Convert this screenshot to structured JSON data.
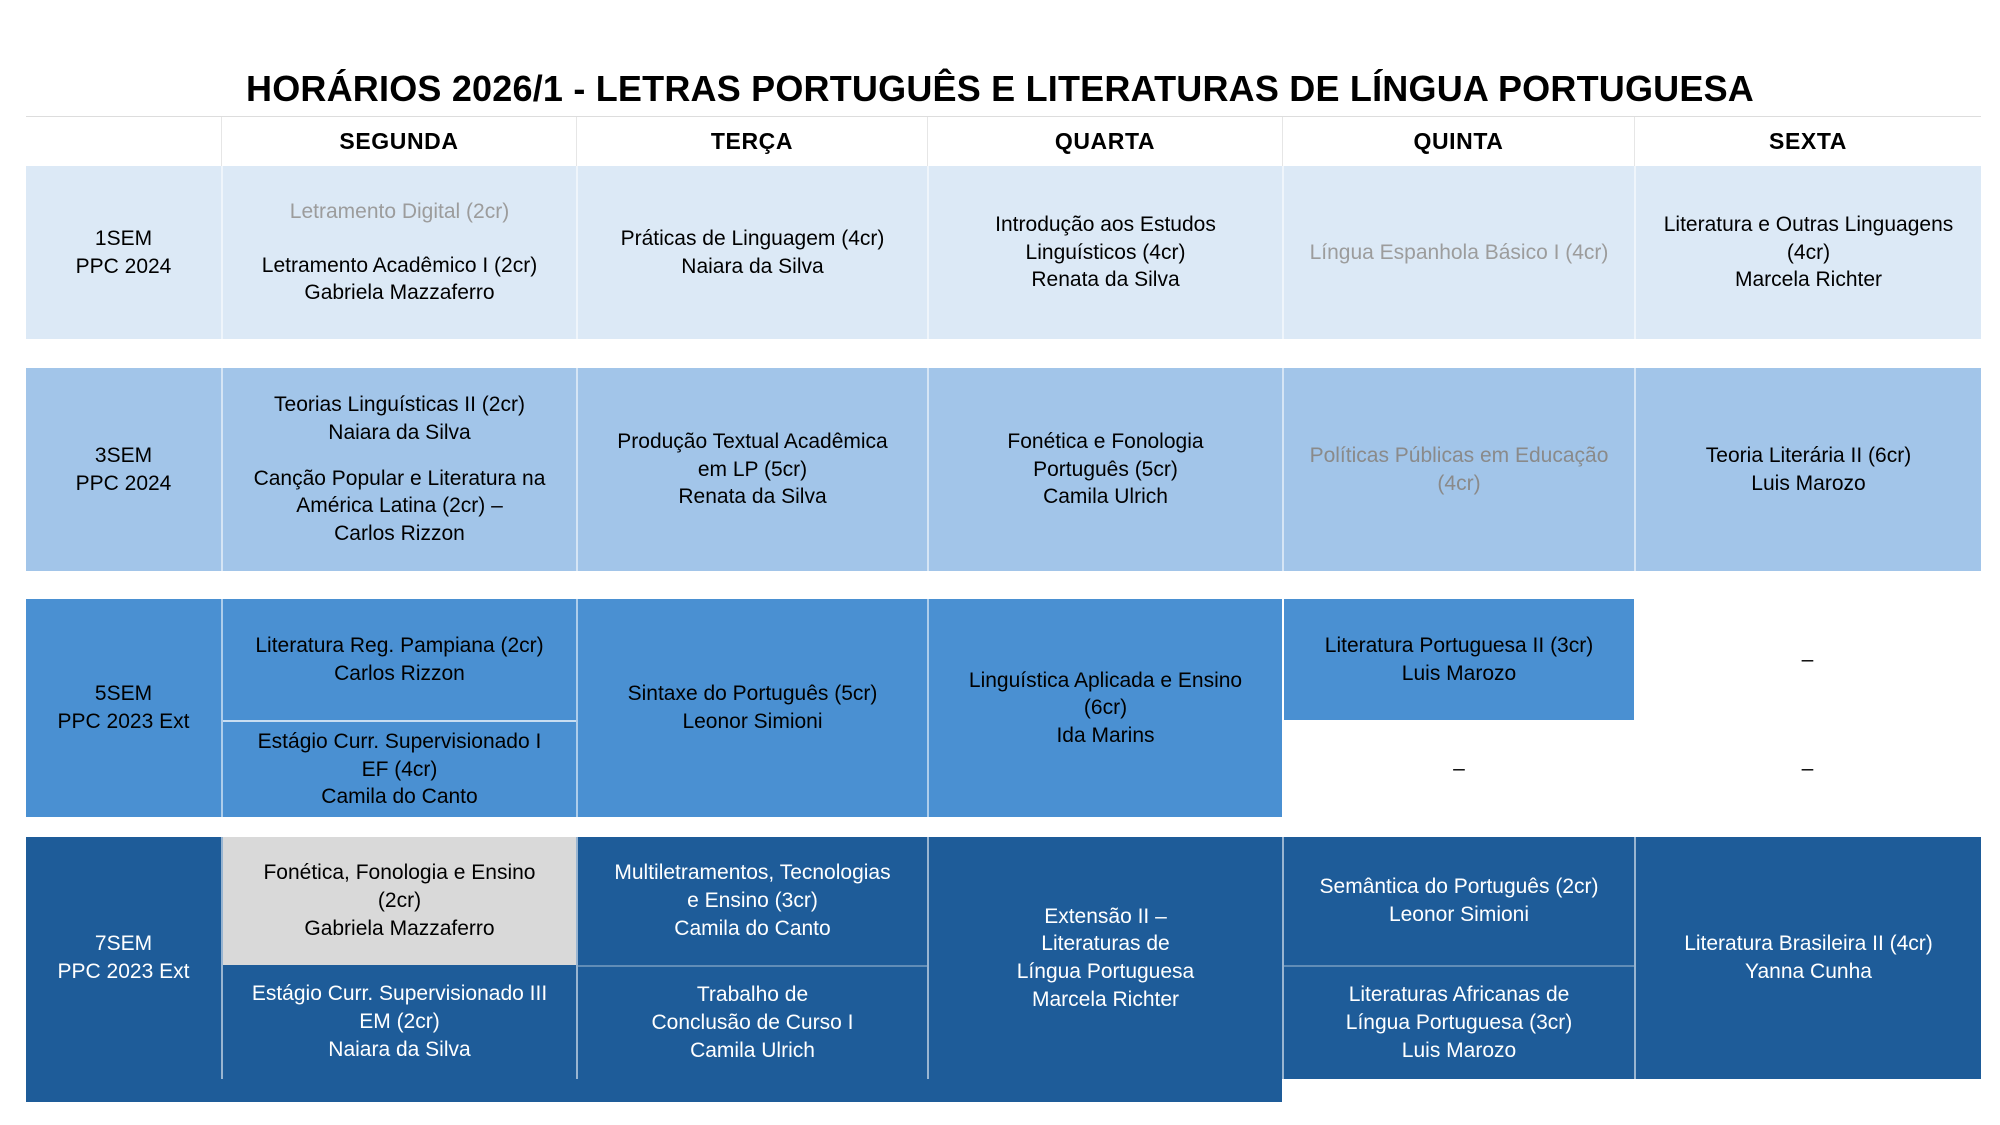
{
  "title": "HORÁRIOS 2026/1 - LETRAS PORTUGUÊS E LITERATURAS DE LÍNGUA PORTUGUESA",
  "days": [
    "SEGUNDA",
    "TERÇA",
    "QUARTA",
    "QUINTA",
    "SEXTA"
  ],
  "colors": {
    "row_1sem_bg": "#dce9f6",
    "row_3sem_bg": "#a2c5e9",
    "row_5sem_bg": "#4a90d2",
    "row_7sem_bg": "#1e5c99",
    "muted_course_text": "#9c9c9c",
    "gray_cell_bg": "#d9d9d9"
  },
  "rows": {
    "sem1": {
      "label": "1SEM\nPPC 2024",
      "segunda_a": "Letramento Digital (2cr)",
      "segunda_b": "Letramento Acadêmico I (2cr)\nGabriela Mazzaferro",
      "terca": "Práticas de Linguagem (4cr)\nNaiara da Silva",
      "quarta": "Introdução aos Estudos\nLinguísticos (4cr)\nRenata da Silva",
      "quinta": "Língua Espanhola Básico I (4cr)",
      "sexta": "Literatura e Outras Linguagens\n(4cr)\nMarcela Richter"
    },
    "sem3": {
      "label": "3SEM\nPPC 2024",
      "segunda_a": "Teorias Linguísticas II (2cr)\nNaiara da Silva",
      "segunda_b": "Canção Popular e Literatura na\nAmérica Latina (2cr) –\nCarlos Rizzon",
      "terca": "Produção Textual Acadêmica\nem LP (5cr)\nRenata da Silva",
      "quarta": "Fonética e Fonologia\nPortuguês (5cr)\nCamila Ulrich",
      "quinta": "Políticas Públicas em Educação\n(4cr)",
      "sexta": "Teoria Literária II (6cr)\nLuis Marozo"
    },
    "sem5": {
      "label": "5SEM\nPPC 2023 Ext",
      "segunda_top": "Literatura Reg. Pampiana (2cr)\nCarlos Rizzon",
      "segunda_bottom": "Estágio Curr. Supervisionado I\nEF (4cr)\nCamila do Canto",
      "terca": "Sintaxe do Português (5cr)\nLeonor Simioni",
      "quarta": "Linguística Aplicada e Ensino\n(6cr)\nIda Marins",
      "quinta_top": "Literatura Portuguesa II (3cr)\nLuis Marozo",
      "quinta_bottom": "–",
      "sexta_top": "–",
      "sexta_bottom": "–"
    },
    "sem7": {
      "label": "7SEM\nPPC 2023 Ext",
      "segunda_top": "Fonética, Fonologia e Ensino\n(2cr)\nGabriela Mazzaferro",
      "segunda_bottom": "Estágio Curr. Supervisionado III\nEM (2cr)\nNaiara da Silva",
      "terca_top": "Multiletramentos, Tecnologias\ne Ensino (3cr)\nCamila do Canto",
      "terca_bottom": "Trabalho de\nConclusão de Curso I\nCamila Ulrich",
      "quarta": "Extensão II –\nLiteraturas de\nLíngua Portuguesa\nMarcela Richter",
      "quinta_top": "Semântica do Português (2cr)\nLeonor Simioni",
      "quinta_bottom": "Literaturas Africanas de\nLíngua Portuguesa (3cr)\nLuis Marozo",
      "sexta": "Literatura Brasileira II (4cr)\nYanna Cunha"
    }
  }
}
